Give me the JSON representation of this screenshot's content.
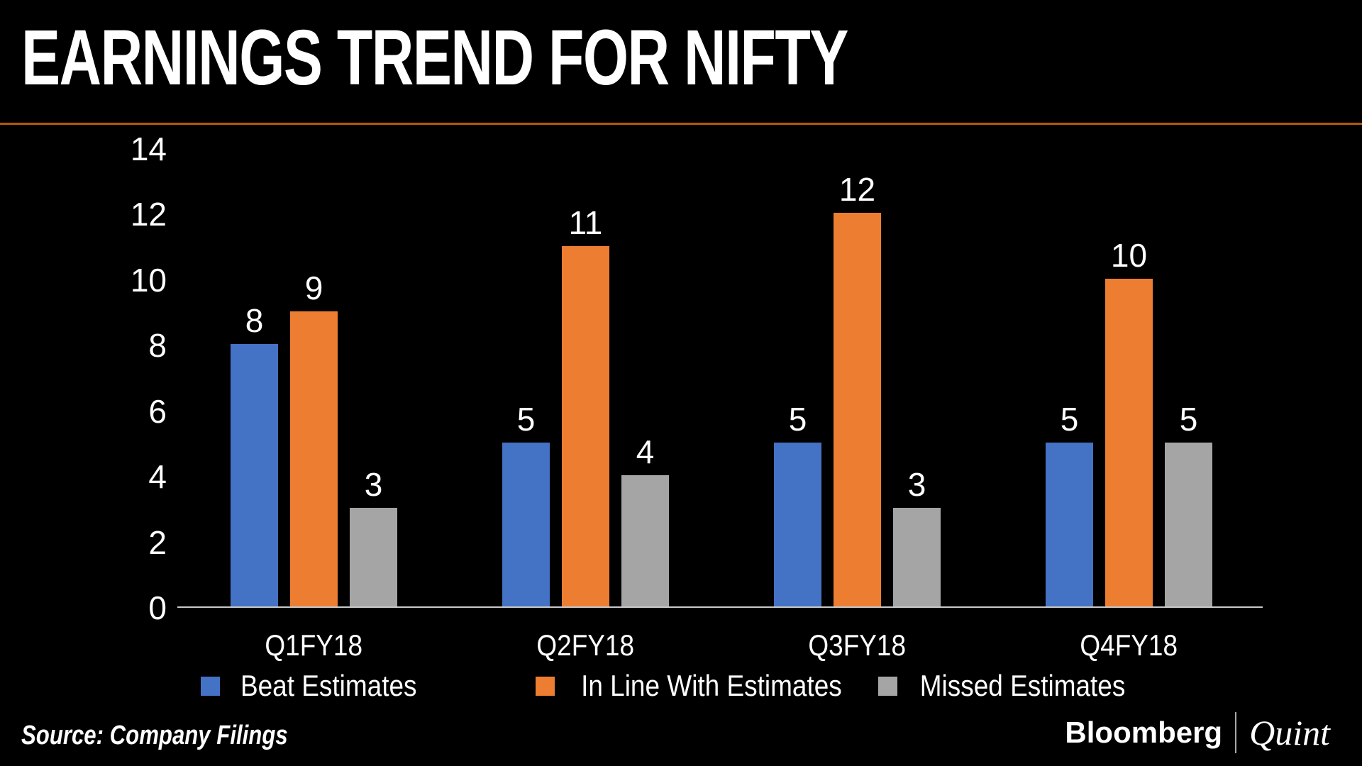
{
  "title": "EARNINGS TREND FOR NIFTY",
  "accent_line_color": "#b25808",
  "chart_data": {
    "type": "bar",
    "title": "EARNINGS TREND FOR NIFTY",
    "categories": [
      "Q1FY18",
      "Q2FY18",
      "Q3FY18",
      "Q4FY18"
    ],
    "series": [
      {
        "name": "Beat Estimates",
        "color": "#4472C4",
        "values": [
          8,
          5,
          5,
          5
        ]
      },
      {
        "name": "In Line With Estimates",
        "color": "#ED7D31",
        "values": [
          9,
          11,
          12,
          10
        ]
      },
      {
        "name": "Missed Estimates",
        "color": "#A5A5A5",
        "values": [
          3,
          4,
          3,
          5
        ]
      }
    ],
    "xlabel": "",
    "ylabel": "",
    "ylim": [
      0,
      14
    ],
    "yticks": [
      0,
      2,
      4,
      6,
      8,
      10,
      12,
      14
    ],
    "grid": false,
    "data_labels": true,
    "legend_position": "bottom",
    "background_color": "#000000",
    "text_color": "#ffffff",
    "axis_line_color": "#c9c9c9"
  },
  "footer": {
    "source": "Source: Company Filings",
    "brand_primary": "Bloomberg",
    "brand_secondary": "Quint"
  }
}
